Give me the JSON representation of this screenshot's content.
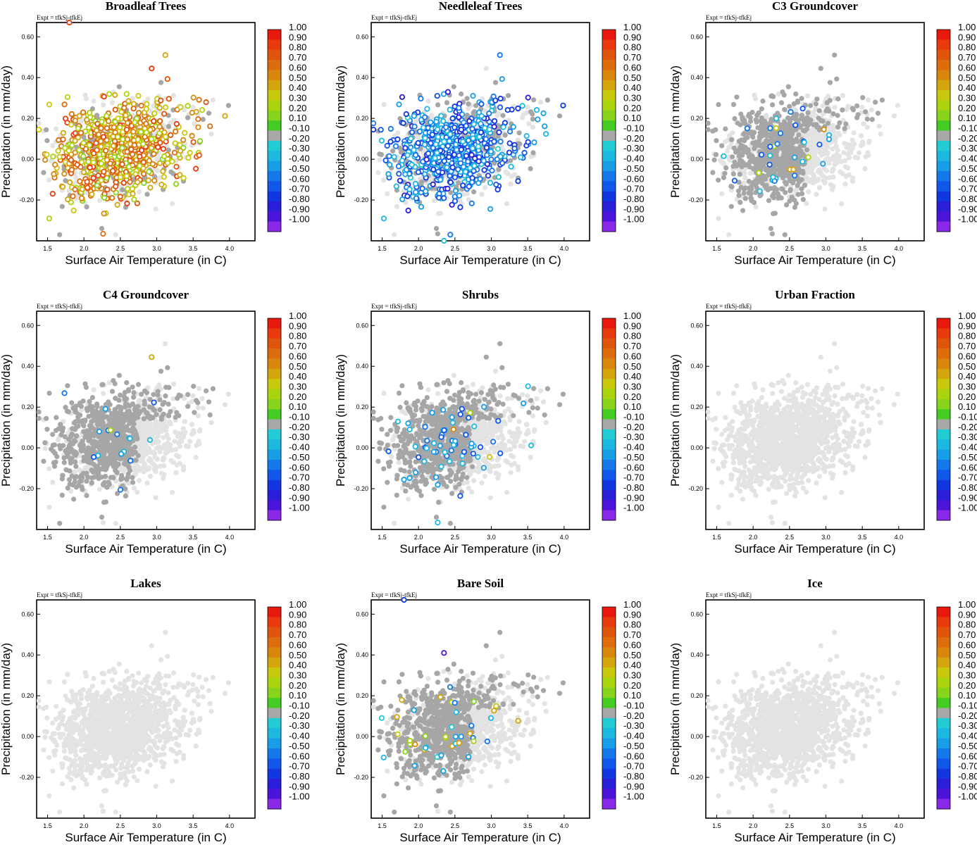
{
  "chart_data": {
    "type": "scatter",
    "layout": "3x3 grid of panels",
    "shared": {
      "xlabel": "Surface Air Temperature (in C)",
      "ylabel": "Precipitation (in mm/day)",
      "expt_label": "Expt = tfkSj-tfkEj",
      "xlim": [
        1.35,
        4.35
      ],
      "ylim": [
        -0.4,
        0.67
      ],
      "xticks": [
        "1.5",
        "2.0",
        "2.5",
        "3.0",
        "3.5",
        "4.0"
      ],
      "yticks": [
        "0.60",
        "0.40",
        "0.20",
        "0.00",
        "-0.20"
      ],
      "colorbar": {
        "labels": [
          "1.00",
          "0.90",
          "0.80",
          "0.70",
          "0.60",
          "0.50",
          "0.40",
          "0.30",
          "0.20",
          "0.10",
          "-0.10",
          "-0.20",
          "-0.30",
          "-0.40",
          "-0.50",
          "-0.60",
          "-0.70",
          "-0.80",
          "-0.90",
          "-1.00"
        ],
        "colors": [
          "#e8180c",
          "#e83a0c",
          "#e0550c",
          "#dc6c0c",
          "#d8870c",
          "#d4a50c",
          "#c8c80c",
          "#aad40c",
          "#88d41c",
          "#44cc22",
          "#a8a8a8",
          "#22ccd4",
          "#1cb8e0",
          "#189ee6",
          "#1478ea",
          "#1058ea",
          "#1236e0",
          "#2a1ed8",
          "#4c14d8",
          "#8a28e8"
        ]
      },
      "colors": {
        "background_points": "#e3e3e3",
        "neutral_points": "#a6a6a6"
      },
      "point_count_approx": 1500
    },
    "panels": [
      {
        "title": "Broadleaf Trees",
        "highlight": "strong",
        "colored_fraction": 0.55,
        "bias": "positive",
        "notable_points": [
          {
            "x": 1.8,
            "y": 0.67,
            "v": 0.85
          }
        ]
      },
      {
        "title": "Needleleaf Trees",
        "highlight": "strong",
        "colored_fraction": 0.45,
        "bias": "negative",
        "notable_points": [
          {
            "x": 2.35,
            "y": -0.4,
            "v": -0.3
          }
        ]
      },
      {
        "title": "C3 Groundcover",
        "highlight": "sparse",
        "colored_fraction": 0.03,
        "bias": "weak-negative",
        "notable_points": []
      },
      {
        "title": "C4 Groundcover",
        "highlight": "sparse",
        "colored_fraction": 0.015,
        "bias": "weak-negative",
        "notable_points": []
      },
      {
        "title": "Shrubs",
        "highlight": "sparse",
        "colored_fraction": 0.04,
        "bias": "weak-negative",
        "notable_points": [
          {
            "x": 2.48,
            "y": 0.09,
            "v": 0.55
          }
        ]
      },
      {
        "title": "Urban Fraction",
        "highlight": "none",
        "colored_fraction": 0.0,
        "bias": "none",
        "notable_points": []
      },
      {
        "title": "Lakes",
        "highlight": "none",
        "colored_fraction": 0.0,
        "bias": "none",
        "notable_points": []
      },
      {
        "title": "Bare Soil",
        "highlight": "sparse",
        "colored_fraction": 0.03,
        "bias": "mixed",
        "notable_points": [
          {
            "x": 1.8,
            "y": 0.67,
            "v": -0.7
          },
          {
            "x": 2.35,
            "y": 0.41,
            "v": -0.9
          }
        ]
      },
      {
        "title": "Ice",
        "highlight": "none",
        "colored_fraction": 0.0,
        "bias": "none",
        "notable_points": []
      }
    ]
  }
}
